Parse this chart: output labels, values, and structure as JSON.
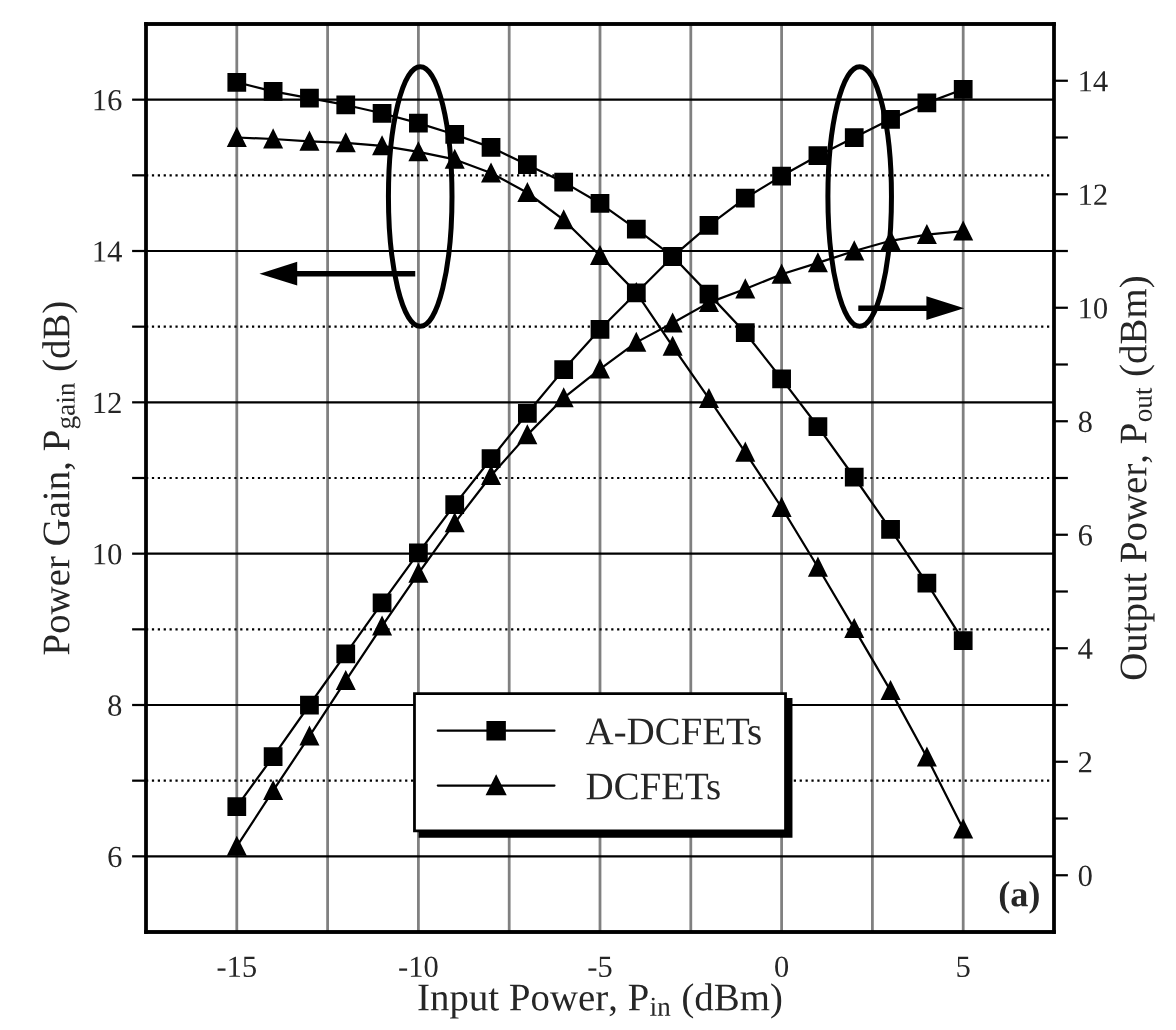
{
  "chart_data": {
    "type": "line",
    "xlabel": "Input Power, P$_{in}$ (dBm)",
    "ylabel": "Power Gain, P$_{gain}$ (dB)",
    "y2label": "Output Power, P$_{out}$ (dBm)",
    "x": [
      -15,
      -14,
      -13,
      -12,
      -11,
      -10,
      -9,
      -8,
      -7,
      -6,
      -5,
      -4,
      -3,
      -2,
      -1,
      0,
      1,
      2,
      3,
      4,
      5
    ],
    "series": [
      {
        "name": "A-DCFETs",
        "color": "#000000",
        "marker": "square",
        "values": [
          16.23,
          16.11,
          16.02,
          15.93,
          15.82,
          15.69,
          15.54,
          15.37,
          15.14,
          14.91,
          14.63,
          14.29,
          13.93,
          13.43,
          12.92,
          12.31,
          11.68,
          11.01,
          10.32,
          9.61,
          8.85
        ]
      },
      {
        "name": "DCFETs",
        "color": "#000000",
        "marker": "triangle",
        "values": [
          15.5,
          15.48,
          15.45,
          15.43,
          15.39,
          15.31,
          15.21,
          15.03,
          14.77,
          14.41,
          13.94,
          13.45,
          12.74,
          12.05,
          11.34,
          10.61,
          9.82,
          9.01,
          8.19,
          7.31,
          6.36
        ]
      },
      {
        "color": "#000000",
        "marker": "square",
        "axis": "y2",
        "values": [
          1.21,
          2.09,
          3.0,
          3.9,
          4.8,
          5.68,
          6.53,
          7.34,
          8.14,
          8.91,
          9.62,
          10.26,
          10.9,
          11.45,
          11.93,
          12.32,
          12.68,
          13.0,
          13.32,
          13.61,
          13.85
        ]
      },
      {
        "color": "#000000",
        "marker": "triangle",
        "axis": "y2",
        "values": [
          0.51,
          1.49,
          2.45,
          3.43,
          4.39,
          5.32,
          6.21,
          7.04,
          7.76,
          8.41,
          8.92,
          9.39,
          9.73,
          10.09,
          10.33,
          10.59,
          10.79,
          11.0,
          11.18,
          11.29,
          11.35
        ]
      }
    ],
    "xlim": [
      -17.5,
      7.5
    ],
    "xticks": [
      -15,
      {
        "value": -12.5,
        "label": null
      },
      -10,
      {
        "value": -7.5,
        "label": null
      },
      -5,
      {
        "value": -2.5,
        "label": null
      },
      0,
      {
        "value": 2.5,
        "label": null
      },
      5
    ],
    "ylim": [
      5,
      17
    ],
    "yticks": [
      6,
      {
        "value": 7,
        "label": null
      },
      8,
      {
        "value": 9,
        "label": null
      },
      10,
      {
        "value": 11,
        "label": null
      },
      12,
      {
        "value": 13,
        "label": null
      },
      14,
      {
        "value": 15,
        "label": null
      },
      16
    ],
    "y2lim": [
      -1,
      15
    ],
    "y2ticks": [
      0,
      {
        "value": 1,
        "label": null
      },
      2,
      {
        "value": 3,
        "label": null
      },
      4,
      {
        "value": 5,
        "label": null
      },
      6,
      {
        "value": 7,
        "label": null
      },
      8,
      {
        "value": 9,
        "label": null
      },
      10,
      {
        "value": 11,
        "label": null
      },
      12,
      {
        "value": 13,
        "label": null
      },
      14
    ],
    "grid": true,
    "legend": "bottom",
    "line_style": "solid",
    "annotations": [
      "(a)"
    ]
  }
}
